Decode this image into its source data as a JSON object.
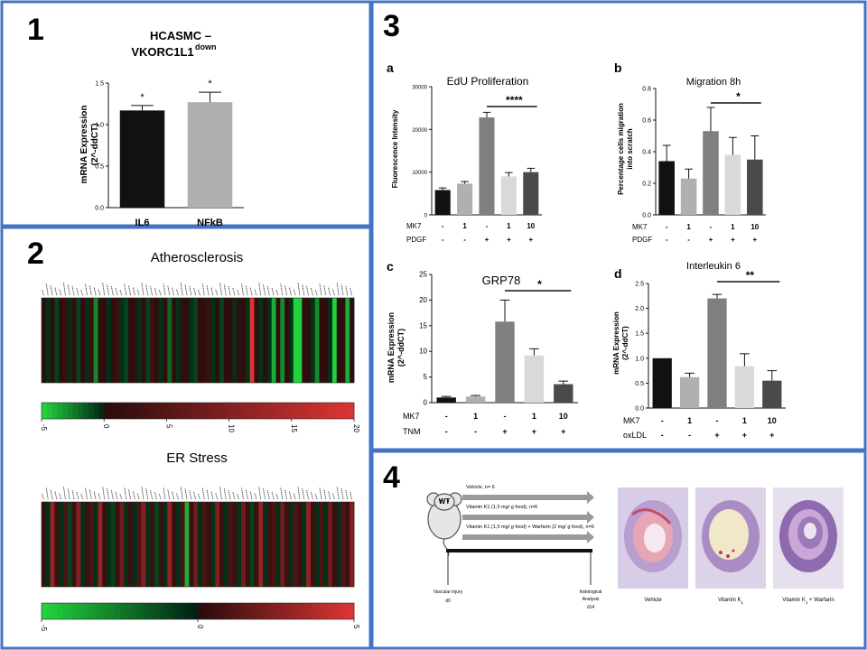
{
  "colors": {
    "panel_border": "#4472c4",
    "black": "#111111",
    "dark_gray": "#4a4a4a",
    "mid_gray": "#7f7f7f",
    "light_gray": "#b0b0b0",
    "lighter_gray": "#d9d9d9",
    "heat_green": "#2ecc40",
    "heat_red": "#d9363e",
    "arrow_gray": "#9a9a9a"
  },
  "panels": {
    "p1": {
      "number": "1",
      "title_line1": "HCASMC –",
      "title_line2": "VKORC1L1",
      "title_sup": "down",
      "ylabel_line1": "mRNA Expression",
      "ylabel_line2": "(2^-ddCT)",
      "sig_labels": [
        "*",
        "*"
      ]
    },
    "p2": {
      "number": "2",
      "heatmap1_title": "Atherosclerosis",
      "heatmap2_title": "ER Stress",
      "scale1_ticks": [
        "-5",
        "0",
        "5",
        "10",
        "15",
        "20"
      ],
      "scale2_ticks": [
        "-5",
        "0",
        "5"
      ]
    },
    "p3": {
      "number": "3",
      "a": {
        "letter": "a",
        "title": "EdU Proliferation",
        "ylabel": "Fluorescence Intensity",
        "sig": "****",
        "row1_label": "MK7",
        "row1": [
          "-",
          "1",
          "-",
          "1",
          "10"
        ],
        "row2_label": "PDGF",
        "row2": [
          "-",
          "-",
          "+",
          "+",
          "+"
        ]
      },
      "b": {
        "letter": "b",
        "title": "Migration 8h",
        "ylabel_line1": "Percentage cells migration",
        "ylabel_line2": "into scratch",
        "sig": "*",
        "row1_label": "MK7",
        "row1": [
          "-",
          "1",
          "-",
          "1",
          "10"
        ],
        "row2_label": "PDGF",
        "row2": [
          "-",
          "-",
          "+",
          "+",
          "+"
        ]
      },
      "c": {
        "letter": "c",
        "title": "GRP78",
        "ylabel_line1": "mRNA Expression",
        "ylabel_line2": "(2^-ddCT)",
        "sig": "*",
        "row1_label": "MK7",
        "row1": [
          "-",
          "1",
          "-",
          "1",
          "10"
        ],
        "row2_label": "TNM",
        "row2": [
          "-",
          "-",
          "+",
          "+",
          "+"
        ]
      },
      "d": {
        "letter": "d",
        "title": "Interleukin 6",
        "ylabel_line1": "mRNA Expression",
        "ylabel_line2": "(2^-ddCT)",
        "sig": "**",
        "row1_label": "MK7",
        "row1": [
          "-",
          "1",
          "-",
          "1",
          "10"
        ],
        "row2_label": "oxLDL",
        "row2": [
          "-",
          "-",
          "+",
          "+",
          "+"
        ]
      }
    },
    "p4": {
      "number": "4",
      "mouse_label": "WT",
      "arrows": [
        "Vehicle, n= 6",
        "Vitamin K1 (1,5 mg/ g food), n=6",
        "Vitamin K1 (1,5 mg/ g food) + Warfarin (2 mg/ g food), n=6"
      ],
      "timeline_left_line1": "Vascular injury",
      "timeline_left_line2": "d0",
      "timeline_right_line1": "histological",
      "timeline_right_line2": "Analysis",
      "timeline_right_line3": "d14",
      "captions": [
        "Vehicle",
        "Vitamin K",
        "Vitamin K + Warfarin"
      ],
      "caption_subs": [
        "",
        "1",
        "1"
      ]
    }
  },
  "chart_data": [
    {
      "id": "p1",
      "type": "bar",
      "title": "HCASMC – VKORC1L1 down",
      "ylabel": "mRNA Expression (2^-ddCT)",
      "categories": [
        "IL6",
        "NFkB"
      ],
      "values": [
        1.17,
        1.27
      ],
      "errors": [
        0.06,
        0.12
      ],
      "ylim": [
        0,
        1.5
      ],
      "yticks": [
        "0.0",
        "0.5",
        "1.0",
        "1.5"
      ],
      "bar_colors": [
        "#111111",
        "#b0b0b0"
      ]
    },
    {
      "id": "p3a",
      "type": "bar",
      "title": "EdU Proliferation",
      "ylabel": "Fluorescence Intensity",
      "values": [
        5800,
        7300,
        22800,
        9000,
        10000
      ],
      "errors": [
        500,
        500,
        1200,
        900,
        900
      ],
      "ylim": [
        0,
        30000
      ],
      "yticks": [
        "0",
        "10000",
        "20000",
        "30000"
      ],
      "bar_colors": [
        "#111111",
        "#b0b0b0",
        "#7f7f7f",
        "#d9d9d9",
        "#4a4a4a"
      ]
    },
    {
      "id": "p3b",
      "type": "bar",
      "title": "Migration 8h",
      "ylabel": "Percentage cells migration into scratch",
      "values": [
        0.34,
        0.23,
        0.53,
        0.38,
        0.35
      ],
      "errors": [
        0.1,
        0.06,
        0.15,
        0.11,
        0.15
      ],
      "ylim": [
        0,
        0.8
      ],
      "yticks": [
        "0.0",
        "0.2",
        "0.4",
        "0.6",
        "0.8"
      ],
      "bar_colors": [
        "#111111",
        "#b0b0b0",
        "#7f7f7f",
        "#d9d9d9",
        "#4a4a4a"
      ]
    },
    {
      "id": "p3c",
      "type": "bar",
      "title": "GRP78",
      "ylabel": "mRNA Expression (2^-ddCT)",
      "values": [
        1.0,
        1.2,
        15.8,
        9.2,
        3.6
      ],
      "errors": [
        0.2,
        0.2,
        4.2,
        1.3,
        0.6
      ],
      "ylim": [
        0,
        25
      ],
      "yticks": [
        "0",
        "5",
        "10",
        "15",
        "20",
        "25"
      ],
      "bar_colors": [
        "#111111",
        "#b0b0b0",
        "#7f7f7f",
        "#d9d9d9",
        "#4a4a4a"
      ]
    },
    {
      "id": "p3d",
      "type": "bar",
      "title": "Interleukin 6",
      "ylabel": "mRNA Expression (2^-ddCT)",
      "values": [
        1.0,
        0.62,
        2.2,
        0.84,
        0.55
      ],
      "errors": [
        0.0,
        0.08,
        0.08,
        0.25,
        0.2
      ],
      "ylim": [
        0,
        2.5
      ],
      "yticks": [
        "0.0",
        "0.5",
        "1.0",
        "1.5",
        "2.0",
        "2.5"
      ],
      "bar_colors": [
        "#111111",
        "#b0b0b0",
        "#7f7f7f",
        "#d9d9d9",
        "#4a4a4a"
      ]
    },
    {
      "id": "p2_atherosclerosis",
      "type": "heatmap",
      "title": "Atherosclerosis",
      "scale_ticks": [
        "-5",
        "0",
        "5",
        "10",
        "15",
        "20"
      ],
      "vrange": [
        -5,
        20
      ],
      "values": [
        0.5,
        -0.5,
        1,
        -1,
        0.5,
        2,
        -0.5,
        1,
        -1,
        0.5,
        -0.5,
        2,
        -3,
        1,
        0.5,
        -0.5,
        1,
        2,
        -0.5,
        -1,
        0.5,
        1,
        -0.5,
        0.5,
        -1,
        2,
        0.5,
        -0.5,
        1,
        -2,
        0.5,
        -0.5,
        1,
        0.5,
        -0.5,
        -1,
        0.5,
        1,
        2,
        -0.5,
        0.5,
        -1,
        1,
        0.5,
        -0.5,
        1,
        0.5,
        -0.5,
        20,
        1,
        -0.5,
        0.5,
        -0.5,
        -4,
        1,
        -3,
        0.5,
        -0.5,
        -6,
        -5,
        1,
        0.5,
        -0.5,
        -3,
        1,
        0.5,
        -0.5,
        -5,
        0.5,
        1,
        -4,
        0.5
      ]
    },
    {
      "id": "p2_er_stress",
      "type": "heatmap",
      "title": "ER Stress",
      "scale_ticks": [
        "-5",
        "0",
        "5"
      ],
      "vrange": [
        -5,
        5
      ],
      "values": [
        0.5,
        -0.5,
        3,
        0.5,
        -0.5,
        1,
        -1,
        0.5,
        2.5,
        -0.5,
        0.5,
        1,
        -0.5,
        3,
        0.5,
        -0.5,
        -1,
        0.5,
        2,
        -0.5,
        0.5,
        -0.5,
        1,
        2.5,
        -0.5,
        0.5,
        -1,
        0.5,
        -0.5,
        3,
        0.5,
        -0.5,
        1,
        -4,
        0.5,
        2,
        -0.5,
        1,
        0.5,
        -0.5,
        2.5,
        0.5,
        -0.5,
        1,
        0.5,
        -0.5,
        2,
        0.5,
        -1,
        0.5,
        3,
        -0.5,
        0.5,
        1,
        -0.5,
        2,
        0.5,
        -0.5,
        1,
        0.5,
        -0.5,
        3,
        0.5,
        -0.5,
        1,
        -0.5,
        2,
        0.5,
        -0.5,
        1,
        0.5,
        2.5
      ]
    }
  ]
}
